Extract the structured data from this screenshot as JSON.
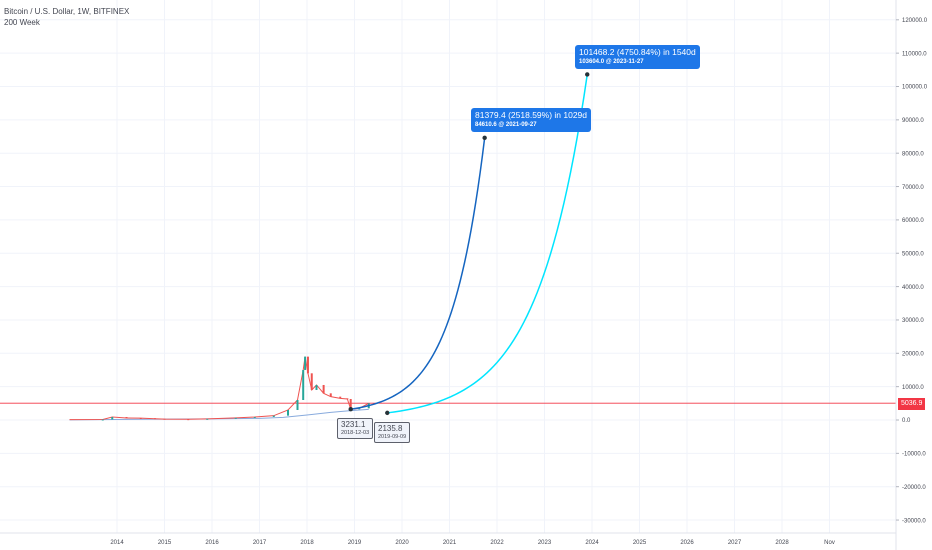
{
  "header": {
    "title": "Bitcoin / U.S. Dollar, 1W, BITFINEX",
    "indicator": "200 Week"
  },
  "price_tag": "5036.9",
  "annotations": {
    "upper_1": {
      "line1": "81379.4 (2518.59%) in 1029d",
      "line2": "84610.6  @ 2021-09-27"
    },
    "upper_2": {
      "line1": "101468.2 (4750.84%) in 1540d",
      "line2": "103604.0  @ 2023-11-27"
    },
    "lower_1": {
      "line1": "3231.1",
      "line2": "2018-12-03"
    },
    "lower_2": {
      "line1": "2135.8",
      "line2": "2019-09-09"
    }
  },
  "colors": {
    "grid": "#f0f3fa",
    "axis_text": "#434651",
    "candle_up": "#26a69a",
    "candle_down": "#ef5350",
    "ma_line": "#88aadd",
    "price_line": "#f23645",
    "curve_1": "#1565c0",
    "curve_2": "#00e5ff",
    "label_bg": "#1e77e8"
  },
  "chart_data": {
    "type": "line",
    "x_axis_labels": [
      "2014",
      "2015",
      "2016",
      "2017",
      "2018",
      "2019",
      "2020",
      "2021",
      "2022",
      "2023",
      "2024",
      "2025",
      "2026",
      "2027",
      "2028",
      "Nov"
    ],
    "y_axis_labels": [
      "120000.0",
      "110000.0",
      "100000.0",
      "90000.0",
      "80000.0",
      "70000.0",
      "60000.0",
      "50000.0",
      "40000.0",
      "30000.0",
      "20000.0",
      "10000.0",
      "0.0",
      "-10000.0",
      "-20000.0",
      "-30000.0"
    ],
    "ylim": [
      -35000,
      125000
    ],
    "grid": true,
    "current_price": 5036.9,
    "series": [
      {
        "points": [
          [
            2013.0,
            100
          ],
          [
            2013.7,
            150
          ],
          [
            2013.9,
            900
          ],
          [
            2014.2,
            600
          ],
          [
            2014.5,
            550
          ],
          [
            2014.8,
            380
          ],
          [
            2015.0,
            250
          ],
          [
            2015.5,
            240
          ],
          [
            2015.9,
            350
          ],
          [
            2016.5,
            650
          ],
          [
            2016.9,
            900
          ],
          [
            2017.3,
            1300
          ],
          [
            2017.6,
            3000
          ],
          [
            2017.8,
            6000
          ],
          [
            2017.92,
            15000
          ],
          [
            2017.96,
            19000
          ],
          [
            2018.02,
            14000
          ],
          [
            2018.1,
            9000
          ],
          [
            2018.2,
            10500
          ],
          [
            2018.35,
            8000
          ],
          [
            2018.5,
            7000
          ],
          [
            2018.7,
            6500
          ],
          [
            2018.85,
            6300
          ],
          [
            2018.92,
            3231.1
          ],
          [
            2019.1,
            3500
          ],
          [
            2019.3,
            5000
          ]
        ]
      },
      {
        "name": "200 Week",
        "points": [
          [
            2013.0,
            50
          ],
          [
            2015.0,
            250
          ],
          [
            2016.0,
            320
          ],
          [
            2017.0,
            500
          ],
          [
            2017.5,
            800
          ],
          [
            2018.0,
            1500
          ],
          [
            2018.5,
            2300
          ],
          [
            2018.92,
            2800
          ],
          [
            2019.3,
            3200
          ]
        ]
      },
      {
        "points": [
          [
            2018.92,
            3231.1
          ],
          [
            2021.74,
            84610.6
          ]
        ]
      },
      {
        "points": [
          [
            2019.69,
            2135.8
          ],
          [
            2023.9,
            103604.0
          ]
        ]
      }
    ]
  }
}
